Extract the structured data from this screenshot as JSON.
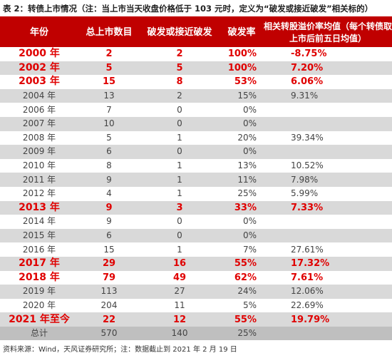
{
  "caption": "表 2：转债上市情况（注：当上市当天收盘价格低于 103 元时，定义为“破发或接近破发”相关标的）",
  "headers": [
    "年份",
    "总上市数目",
    "破发或接近破发",
    "破发率",
    "相关转股溢价率均值（每个转债取上市后前五日均值）"
  ],
  "rows": [
    {
      "year": "2000 年",
      "listed": "2",
      "broken": "2",
      "rate": "100%",
      "premium": "-8.75%",
      "highlight": true,
      "shaded": false
    },
    {
      "year": "2002 年",
      "listed": "5",
      "broken": "5",
      "rate": "100%",
      "premium": "7.20%",
      "highlight": true,
      "shaded": true
    },
    {
      "year": "2003 年",
      "listed": "15",
      "broken": "8",
      "rate": "53%",
      "premium": "6.06%",
      "highlight": true,
      "shaded": false
    },
    {
      "year": "2004 年",
      "listed": "13",
      "broken": "2",
      "rate": "15%",
      "premium": "9.31%",
      "highlight": false,
      "shaded": true
    },
    {
      "year": "2006 年",
      "listed": "7",
      "broken": "0",
      "rate": "0%",
      "premium": "",
      "highlight": false,
      "shaded": false
    },
    {
      "year": "2007 年",
      "listed": "10",
      "broken": "0",
      "rate": "0%",
      "premium": "",
      "highlight": false,
      "shaded": true
    },
    {
      "year": "2008 年",
      "listed": "5",
      "broken": "1",
      "rate": "20%",
      "premium": "39.34%",
      "highlight": false,
      "shaded": false
    },
    {
      "year": "2009 年",
      "listed": "6",
      "broken": "0",
      "rate": "0%",
      "premium": "",
      "highlight": false,
      "shaded": true
    },
    {
      "year": "2010 年",
      "listed": "8",
      "broken": "1",
      "rate": "13%",
      "premium": "10.52%",
      "highlight": false,
      "shaded": false
    },
    {
      "year": "2011 年",
      "listed": "9",
      "broken": "1",
      "rate": "11%",
      "premium": "7.98%",
      "highlight": false,
      "shaded": true
    },
    {
      "year": "2012 年",
      "listed": "4",
      "broken": "1",
      "rate": "25%",
      "premium": "5.99%",
      "highlight": false,
      "shaded": false
    },
    {
      "year": "2013 年",
      "listed": "9",
      "broken": "3",
      "rate": "33%",
      "premium": "7.33%",
      "highlight": true,
      "shaded": true
    },
    {
      "year": "2014 年",
      "listed": "9",
      "broken": "0",
      "rate": "0%",
      "premium": "",
      "highlight": false,
      "shaded": false
    },
    {
      "year": "2015 年",
      "listed": "6",
      "broken": "0",
      "rate": "0%",
      "premium": "",
      "highlight": false,
      "shaded": true
    },
    {
      "year": "2016 年",
      "listed": "15",
      "broken": "1",
      "rate": "7%",
      "premium": "27.61%",
      "highlight": false,
      "shaded": false
    },
    {
      "year": "2017 年",
      "listed": "29",
      "broken": "16",
      "rate": "55%",
      "premium": "17.32%",
      "highlight": true,
      "shaded": true
    },
    {
      "year": "2018 年",
      "listed": "79",
      "broken": "49",
      "rate": "62%",
      "premium": "7.61%",
      "highlight": true,
      "shaded": false
    },
    {
      "year": "2019 年",
      "listed": "113",
      "broken": "27",
      "rate": "24%",
      "premium": "12.06%",
      "highlight": false,
      "shaded": true
    },
    {
      "year": "2020 年",
      "listed": "204",
      "broken": "11",
      "rate": "5%",
      "premium": "22.69%",
      "highlight": false,
      "shaded": false
    },
    {
      "year": "2021 年至今",
      "listed": "22",
      "broken": "12",
      "rate": "55%",
      "premium": "19.79%",
      "highlight": true,
      "shaded": true
    }
  ],
  "total": {
    "year": "总计",
    "listed": "570",
    "broken": "140",
    "rate": "25%",
    "premium": ""
  },
  "footnote": "资料来源：Wind，天风证券研究所；注：数据截止到 2021 年 2 月 19 日",
  "colors": {
    "header_bg": "#c00000",
    "highlight_text": "#e00000",
    "shade_bg": "#d9d9d9",
    "total_bg": "#bfbfbf"
  }
}
